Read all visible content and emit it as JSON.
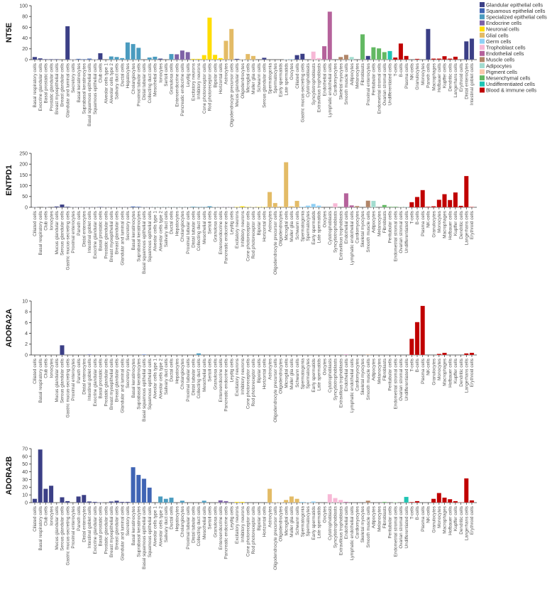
{
  "legend": [
    {
      "label": "Glandular epithelial cells",
      "color": "#3b3f86"
    },
    {
      "label": "Squamous epithelial cells",
      "color": "#3f64b4"
    },
    {
      "label": "Specialized epithelial cells",
      "color": "#4a9bbf"
    },
    {
      "label": "Endocrine cells",
      "color": "#7d62a6"
    },
    {
      "label": "Neuronal cells",
      "color": "#ffdd00"
    },
    {
      "label": "Glial cells",
      "color": "#e3bb66"
    },
    {
      "label": "Germ cells",
      "color": "#8fd0f5"
    },
    {
      "label": "Trophoblast cells",
      "color": "#f7b8d6"
    },
    {
      "label": "Endothelial cells",
      "color": "#b5629b"
    },
    {
      "label": "Muscle cells",
      "color": "#b08568"
    },
    {
      "label": "Adipocytes",
      "color": "#a3dccf"
    },
    {
      "label": "Pigment cells",
      "color": "#f9c9ac"
    },
    {
      "label": "Mesenchymal cells",
      "color": "#62b862"
    },
    {
      "label": "Undifferentiated cells",
      "color": "#1fc4b3"
    },
    {
      "label": "Blood & immune cells",
      "color": "#c00000"
    }
  ],
  "cell_group": {
    "Ciliated cells": 0,
    "Basal respiratory cells": 0,
    "Club cells": 0,
    "Ionocytes": 0,
    "Mucus glandular cells": 0,
    "Serous glandular cells": 0,
    "Gastric mucus-secreting cells": 0,
    "Proximal enterocytes": 0,
    "Paneth cells": 0,
    "Distal enterocytes": 0,
    "Intestinal goblet cells": 0,
    "Exocrine glandular cells": 0,
    "Basal prostatic cells": 0,
    "Prostatic glandular cells": 0,
    "Breast myoepithelial cells": 0,
    "Breast glandular cells": 0,
    "Glandular and luminal cells": 0,
    "Secretory cells": 0,
    "Basal keratinocytes": 1,
    "Suprabasal keratinocytes": 1,
    "Basal squamous epithelial cells": 1,
    "Squamous epithelial cells": 1,
    "Alveolar cells type 1": 2,
    "Alveolar cells type 2": 2,
    "Salivary duct cells": 2,
    "Ductal cells": 2,
    "Hepatocytes": 2,
    "Cholangiocytes": 2,
    "Proximal tubular cells": 2,
    "Distal tubular cells": 2,
    "Collecting duct cells": 2,
    "Mesothelial cells": 2,
    "Sertoli cells": 2,
    "Granulosa cells": 2,
    "Enteroendocrine cells": 3,
    "Pancreatic endocrine cells": 3,
    "Leydig cells": 3,
    "Excitatory neurons": 4,
    "Inhibitory neurons": 4,
    "Cone photoreceptor cells": 4,
    "Rod photoreceptor cells": 4,
    "Bipolar cells": 4,
    "Horizontal cells": 4,
    "Astrocytes": 5,
    "Oligodendrocyte precursor cells": 5,
    "Oligodendrocytes": 5,
    "Microglial cells": 5,
    "Muller glia cells": 5,
    "Schwann cells": 5,
    "Spermatogonia": 6,
    "Spermatocytes": 6,
    "Early spermatids": 6,
    "Late spermatids": 6,
    "Oocytes": 6,
    "Cytotrophoblasts": 7,
    "Syncytiotrophoblasts": 7,
    "Extravillous trophoblasts": 7,
    "Endothelial cells": 8,
    "Lymphatic endothelial cells": 8,
    "Cardiomyocytes": 9,
    "Skeletal myocytes": 9,
    "Smooth muscle cells": 9,
    "Adipocytes": 10,
    "Melanocytes": 11,
    "Fibroblasts": 12,
    "Peritubular cells": 12,
    "Endometrial stromal cells": 12,
    "Ovarian stromal cells": 12,
    "Undifferentiated cells": 13,
    "T-cells": 14,
    "B-cells": 14,
    "Plasma cells": 14,
    "NK-cells": 14,
    "Granulocytes": 14,
    "Monocytes": 14,
    "Macrophages": 14,
    "Hofbauer cells": 14,
    "Kupffer cells": 14,
    "Dendritic cells": 14,
    "Langerhans cells": 14,
    "Erythroid cells": 14
  },
  "chart_data": [
    {
      "type": "bar",
      "ylabel": "NT5E",
      "ylim": [
        0,
        100
      ],
      "yticks": [
        0,
        20,
        40,
        60,
        80,
        100
      ],
      "legend_position": "top-right",
      "grid": false,
      "categories": [
        "Basal respiratory cells",
        "Exocrine glandular cells",
        "Basal prostatic cells",
        "Prostatic glandular cells",
        "Breast myoepithelial cells",
        "Breast glandular cells",
        "Glandular and luminal cells",
        "Secretory cells",
        "Basal keratinocytes",
        "Suprabasal keratinocytes",
        "Basal squamous epithelial cells",
        "Squamous epithelial cells",
        "Club cells",
        "Alveolar cells type 1",
        "Alveolar cells type 2",
        "Salivary duct cells",
        "Ductal cells",
        "Hepatocytes",
        "Cholangiocytes",
        "Proximal tubular cells",
        "Distal tubular cells",
        "Collecting duct cells",
        "Mesothelial cells",
        "Ionocytes",
        "Sertoli cells",
        "Granulosa cells",
        "Enteroendocrine cells",
        "Pancreatic endocrine cells",
        "Leydig cells",
        "Excitatory neurons",
        "Inhibitory neurons",
        "Cone photoreceptor cells",
        "Rod photoreceptor cells",
        "Bipolar cells",
        "Horizontal cells",
        "Astrocytes",
        "Oligodendrocyte precursor cells",
        "Mucus glandular cells",
        "Oligodendrocytes",
        "Microglial cells",
        "Muller glia cells",
        "Schwann cells",
        "Serous glandular cells",
        "Spermatogonia",
        "Spermatocytes",
        "Early spermatids",
        "Late spermatids",
        "Oocytes",
        "Ciliated cells",
        "Gastric mucus-secreting cells",
        "Cytotrophoblasts",
        "Syncytiotrophoblasts",
        "Extravillous trophoblasts",
        "Endothelial cells",
        "Lymphatic endothelial cells",
        "Cardiomyocytes",
        "Skeletal myocytes",
        "Smooth muscle cells",
        "Adipocytes",
        "Melanocytes",
        "Fibroblasts",
        "Proximal enterocytes",
        "Peritubular cells",
        "Endometrial stromal cells",
        "Ovarian stromal cells",
        "Undifferentiated cells",
        "T-cells",
        "B-cells",
        "Plasma cells",
        "NK-cells",
        "Granulocytes",
        "Monocytes",
        "Paneth cells",
        "Macrophages",
        "Hofbauer cells",
        "Kupffer cells",
        "Dendritic cells",
        "Langerhans cells",
        "Erythroid cells",
        "Distal enterocytes",
        "Intestinal goblet cells"
      ],
      "values": [
        5,
        2.5,
        1,
        1,
        1,
        0,
        62,
        0.5,
        1.5,
        1,
        2,
        0.5,
        12,
        0,
        6,
        5,
        3,
        32,
        29,
        22,
        0,
        4,
        5.5,
        2,
        0,
        10.5,
        10,
        17,
        14,
        1.5,
        1.5,
        8.5,
        78,
        9,
        3,
        35,
        57,
        1.5,
        0.5,
        10.5,
        7,
        0,
        3.5,
        0,
        0,
        0,
        0.5,
        1,
        8.5,
        11,
        0,
        15,
        3,
        25,
        89,
        0,
        5,
        9,
        5,
        0,
        47,
        7,
        23,
        21,
        14,
        16,
        4,
        30,
        7,
        0,
        1.5,
        0,
        57,
        2,
        2,
        6.5,
        2,
        5.5,
        0,
        34,
        39
      ]
    },
    {
      "type": "bar",
      "ylabel": "ENTPD1",
      "ylim": [
        0,
        250
      ],
      "yticks": [
        0,
        50,
        100,
        150,
        200,
        250
      ],
      "grid": false,
      "categories": [
        "Ciliated cells",
        "Basal respiratory cells",
        "Club cells",
        "Ionocytes",
        "Mucus glandular cells",
        "Serous glandular cells",
        "Gastric mucus-secreting cells",
        "Proximal enterocytes",
        "Paneth cells",
        "Distal enterocytes",
        "Intestinal goblet cells",
        "Exocrine glandular cells",
        "Basal prostatic cells",
        "Prostatic glandular cells",
        "Breast myoepithelial cells",
        "Breast glandular cells",
        "Glandular and luminal cells",
        "Secretory cells",
        "Basal keratinocytes",
        "Suprabasal keratinocytes",
        "Basal squamous epithelial cells",
        "Squamous epithelial cells",
        "Alveolar cells type 1",
        "Alveolar cells type 2",
        "Salivary duct cells",
        "Ductal cells",
        "Hepatocytes",
        "Cholangiocytes",
        "Proximal tubular cells",
        "Distal tubular cells",
        "Collecting duct cells",
        "Mesothelial cells",
        "Sertoli cells",
        "Granulosa cells",
        "Enteroendocrine cells",
        "Pancreatic endocrine cells",
        "Leydig cells",
        "Excitatory neurons",
        "Inhibitory neurons",
        "Cone photoreceptor cells",
        "Rod photoreceptor cells",
        "Bipolar cells",
        "Horizontal cells",
        "Astrocytes",
        "Oligodendrocyte precursor cells",
        "Oligodendrocytes",
        "Microglial cells",
        "Muller glia cells",
        "Schwann cells",
        "Spermatogonia",
        "Spermatocytes",
        "Early spermatids",
        "Late spermatids",
        "Oocytes",
        "Cytotrophoblasts",
        "Syncytiotrophoblasts",
        "Extravillous trophoblasts",
        "Endothelial cells",
        "Lymphatic endothelial cells",
        "Cardiomyocytes",
        "Skeletal myocytes",
        "Smooth muscle cells",
        "Adipocytes",
        "Melanocytes",
        "Fibroblasts",
        "Peritubular cells",
        "Endometrial stromal cells",
        "Ovarian stromal cells",
        "Undifferentiated cells",
        "T-cells",
        "B-cells",
        "Plasma cells",
        "NK-cells",
        "Granulocytes",
        "Monocytes",
        "Macrophages",
        "Hofbauer cells",
        "Kupffer cells",
        "Dendritic cells",
        "Langerhans cells",
        "Erythroid cells"
      ],
      "values": [
        1,
        0,
        1,
        0,
        4,
        13,
        3,
        1,
        1,
        1,
        1,
        1,
        2,
        1,
        1,
        1,
        1,
        1,
        4,
        3,
        1,
        1,
        1,
        1,
        1,
        1,
        1,
        1,
        1,
        3,
        2,
        2,
        5,
        1,
        1,
        1,
        1,
        2,
        5,
        2,
        1,
        2,
        2,
        71,
        20,
        4,
        209,
        5,
        30,
        3,
        8,
        16,
        8,
        0,
        0,
        19,
        0,
        65,
        9,
        6,
        0,
        31,
        30,
        0,
        11,
        3,
        3,
        1,
        1,
        24,
        48,
        80,
        3,
        5,
        35,
        61,
        34,
        69,
        7,
        145,
        2
      ]
    },
    {
      "type": "bar",
      "ylabel": "ADORA2A",
      "ylim": [
        0,
        10
      ],
      "yticks": [
        0,
        2,
        4,
        6,
        8,
        10
      ],
      "grid": false,
      "categories": [
        "Ciliated cells",
        "Basal respiratory cells",
        "Club cells",
        "Ionocytes",
        "Mucus glandular cells",
        "Serous glandular cells",
        "Gastric mucus-secreting cells",
        "Proximal enterocytes",
        "Paneth cells",
        "Distal enterocytes",
        "Intestinal goblet cells",
        "Exocrine glandular cells",
        "Basal prostatic cells",
        "Prostatic glandular cells",
        "Breast myoepithelial cells",
        "Breast glandular cells",
        "Glandular and luminal cells",
        "Secretory cells",
        "Basal keratinocytes",
        "Suprabasal keratinocytes",
        "Basal squamous epithelial cells",
        "Squamous epithelial cells",
        "Alveolar cells type 1",
        "Alveolar cells type 2",
        "Salivary duct cells",
        "Ductal cells",
        "Hepatocytes",
        "Cholangiocytes",
        "Proximal tubular cells",
        "Distal tubular cells",
        "Collecting duct cells",
        "Mesothelial cells",
        "Sertoli cells",
        "Granulosa cells",
        "Enteroendocrine cells",
        "Pancreatic endocrine cells",
        "Leydig cells",
        "Excitatory neurons",
        "Inhibitory neurons",
        "Cone photoreceptor cells",
        "Rod photoreceptor cells",
        "Bipolar cells",
        "Horizontal cells",
        "Astrocytes",
        "Oligodendrocyte precursor cells",
        "Oligodendrocytes",
        "Microglial cells",
        "Muller glia cells",
        "Schwann cells",
        "Spermatogonia",
        "Spermatocytes",
        "Early spermatids",
        "Late spermatids",
        "Oocytes",
        "Cytotrophoblasts",
        "Syncytiotrophoblasts",
        "Extravillous trophoblasts",
        "Endothelial cells",
        "Lymphatic endothelial cells",
        "Cardiomyocytes",
        "Skeletal myocytes",
        "Smooth muscle cells",
        "Adipocytes",
        "Melanocytes",
        "Fibroblasts",
        "Peritubular cells",
        "Endometrial stromal cells",
        "Ovarian stromal cells",
        "Undifferentiated cells",
        "T-cells",
        "B-cells",
        "Plasma cells",
        "NK-cells",
        "Granulocytes",
        "Monocytes",
        "Macrophages",
        "Hofbauer cells",
        "Kupffer cells",
        "Dendritic cells",
        "Langerhans cells",
        "Erythroid cells"
      ],
      "values": [
        0,
        0,
        0,
        0,
        0,
        1.8,
        0,
        0,
        0,
        0,
        0.1,
        0,
        0,
        0,
        0,
        0,
        0,
        0,
        0,
        0,
        0.1,
        0,
        0,
        0,
        0,
        0,
        0,
        0,
        0,
        0,
        0.3,
        0,
        0,
        0,
        0,
        0,
        0,
        0,
        0,
        0,
        0,
        0,
        0,
        0,
        0,
        0,
        0,
        0,
        0,
        0,
        0,
        0,
        0,
        0,
        0,
        0,
        0,
        0.1,
        0,
        0,
        0,
        0.1,
        0,
        0,
        0,
        0,
        0,
        0,
        0,
        3,
        6.1,
        9.1,
        0,
        0,
        0.2,
        0.4,
        0,
        0,
        0,
        0.3,
        0.4
      ]
    },
    {
      "type": "bar",
      "ylabel": "ADORA2B",
      "ylim": [
        0,
        70
      ],
      "yticks": [
        0,
        10,
        20,
        30,
        40,
        50,
        60,
        70
      ],
      "grid": false,
      "categories": [
        "Ciliated cells",
        "Basal respiratory cells",
        "Club cells",
        "Ionocytes",
        "Mucus glandular cells",
        "Serous glandular cells",
        "Gastric mucus-secreting cells",
        "Proximal enterocytes",
        "Paneth cells",
        "Distal enterocytes",
        "Intestinal goblet cells",
        "Exocrine glandular cells",
        "Basal prostatic cells",
        "Prostatic glandular cells",
        "Breast myoepithelial cells",
        "Breast glandular cells",
        "Glandular and luminal cells",
        "Secretory cells",
        "Basal keratinocytes",
        "Suprabasal keratinocytes",
        "Basal squamous epithelial cells",
        "Squamous epithelial cells",
        "Alveolar cells type 1",
        "Alveolar cells type 2",
        "Salivary duct cells",
        "Ductal cells",
        "Hepatocytes",
        "Cholangiocytes",
        "Proximal tubular cells",
        "Distal tubular cells",
        "Collecting duct cells",
        "Mesothelial cells",
        "Sertoli cells",
        "Granulosa cells",
        "Enteroendocrine cells",
        "Pancreatic endocrine cells",
        "Leydig cells",
        "Excitatory neurons",
        "Inhibitory neurons",
        "Cone photoreceptor cells",
        "Rod photoreceptor cells",
        "Bipolar cells",
        "Horizontal cells",
        "Astrocytes",
        "Oligodendrocyte precursor cells",
        "Oligodendrocytes",
        "Microglial cells",
        "Muller glia cells",
        "Schwann cells",
        "Spermatogonia",
        "Spermatocytes",
        "Early spermatids",
        "Late spermatids",
        "Oocytes",
        "Cytotrophoblasts",
        "Syncytiotrophoblasts",
        "Extravillous trophoblasts",
        "Endothelial cells",
        "Lymphatic endothelial cells",
        "Cardiomyocytes",
        "Skeletal myocytes",
        "Smooth muscle cells",
        "Adipocytes",
        "Melanocytes",
        "Fibroblasts",
        "Peritubular cells",
        "Endometrial stromal cells",
        "Ovarian stromal cells",
        "Undifferentiated cells",
        "T-cells",
        "B-cells",
        "Plasma cells",
        "NK-cells",
        "Granulocytes",
        "Monocytes",
        "Macrophages",
        "Hofbauer cells",
        "Kupffer cells",
        "Dendritic cells",
        "Langerhans cells",
        "Erythroid cells"
      ],
      "values": [
        5,
        69,
        18,
        22,
        0,
        7,
        2,
        0,
        8,
        10,
        1.5,
        1,
        0.5,
        0,
        1.5,
        2.5,
        1,
        1,
        46,
        36,
        31,
        19.5,
        0,
        8,
        5,
        6.5,
        0,
        2.5,
        0,
        0,
        0,
        2.5,
        0,
        0,
        3,
        2,
        0,
        1,
        1,
        0,
        0,
        0,
        0,
        18,
        0.5,
        0.5,
        3.5,
        8,
        5,
        1,
        0.5,
        1.5,
        0,
        0,
        11,
        6,
        3.5,
        1,
        0,
        0,
        0,
        2.5,
        0,
        0,
        1,
        0,
        0.5,
        0,
        7.5,
        0.8,
        2,
        0,
        0,
        5,
        12.5,
        6.5,
        4.5,
        2,
        0.5,
        31.5,
        3
      ]
    }
  ]
}
